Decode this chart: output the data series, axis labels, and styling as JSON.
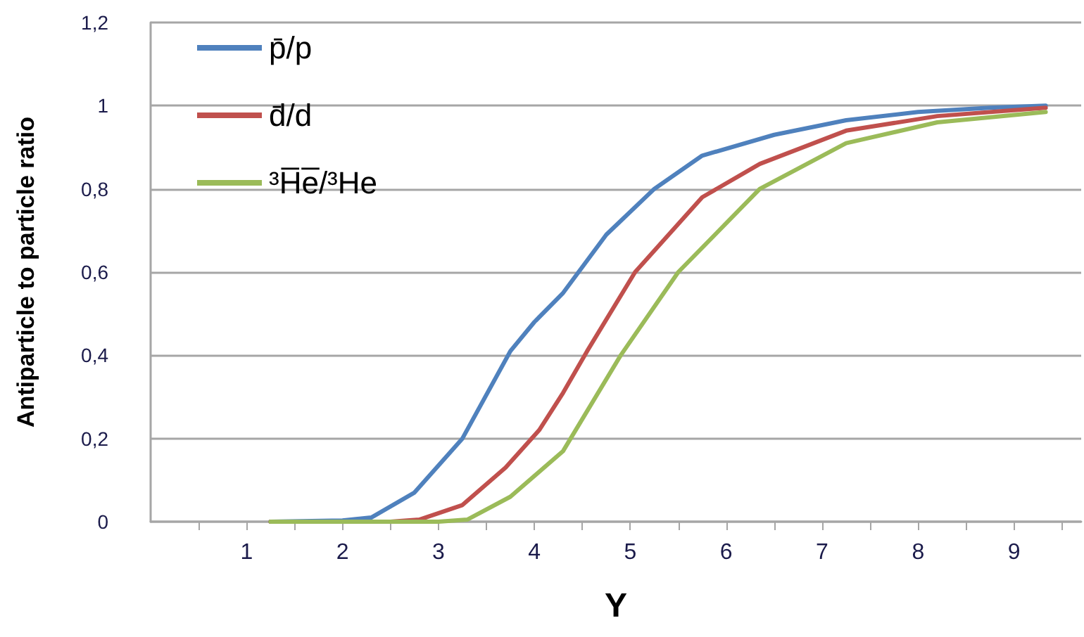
{
  "chart_data": {
    "type": "line",
    "xlabel": "Y",
    "ylabel": "Antiparticle to particle ratio",
    "series": [
      {
        "name": "p̄/p",
        "color": "#4f81bd",
        "x": [
          1.25,
          2.0,
          2.3,
          2.75,
          3.25,
          3.75,
          4.0,
          4.3,
          4.75,
          5.25,
          5.75,
          6.5,
          7.25,
          8.0,
          8.75,
          9.33
        ],
        "values": [
          0,
          0.003,
          0.01,
          0.07,
          0.2,
          0.41,
          0.48,
          0.55,
          0.69,
          0.8,
          0.88,
          0.93,
          0.965,
          0.985,
          0.995,
          1.0
        ]
      },
      {
        "name": "d̄/d",
        "color": "#c0504d",
        "x": [
          1.25,
          2.5,
          2.8,
          3.25,
          3.7,
          4.05,
          4.3,
          4.55,
          5.05,
          5.75,
          6.35,
          7.25,
          8.2,
          9.33
        ],
        "values": [
          0,
          0,
          0.005,
          0.04,
          0.13,
          0.22,
          0.31,
          0.41,
          0.6,
          0.78,
          0.86,
          0.94,
          0.975,
          0.995
        ]
      },
      {
        "name": "³H̅e̅/³He",
        "color": "#9bbb59",
        "x": [
          1.25,
          3.0,
          3.3,
          3.75,
          4.3,
          4.9,
          5.5,
          6.35,
          7.25,
          8.2,
          9.33
        ],
        "values": [
          0,
          0,
          0.005,
          0.06,
          0.17,
          0.4,
          0.6,
          0.8,
          0.91,
          0.96,
          0.985
        ]
      }
    ],
    "xlim": [
      0,
      9.7
    ],
    "xticks": [
      {
        "value": 0.5,
        "label": null
      },
      1,
      {
        "value": 1.5,
        "label": null
      },
      2,
      {
        "value": 2.5,
        "label": null
      },
      3,
      {
        "value": 3.5,
        "label": null
      },
      4,
      {
        "value": 4.5,
        "label": null
      },
      5,
      {
        "value": 5.5,
        "label": null
      },
      6,
      {
        "value": 6.5,
        "label": null
      },
      7,
      {
        "value": 7.5,
        "label": null
      },
      8,
      {
        "value": 8.5,
        "label": null
      },
      9,
      {
        "value": 9.5,
        "label": null
      }
    ],
    "ylim": [
      0,
      1.2
    ],
    "yticks": [
      0,
      {
        "value": 0.2,
        "label": "0,2"
      },
      {
        "value": 0.4,
        "label": "0,4"
      },
      {
        "value": 0.6,
        "label": "0,6"
      },
      {
        "value": 0.8,
        "label": "0,8"
      },
      1,
      {
        "value": 1.2,
        "label": "1,2"
      }
    ],
    "grid": "y",
    "legend": "top left",
    "marker": "none",
    "line_style": "solid"
  }
}
